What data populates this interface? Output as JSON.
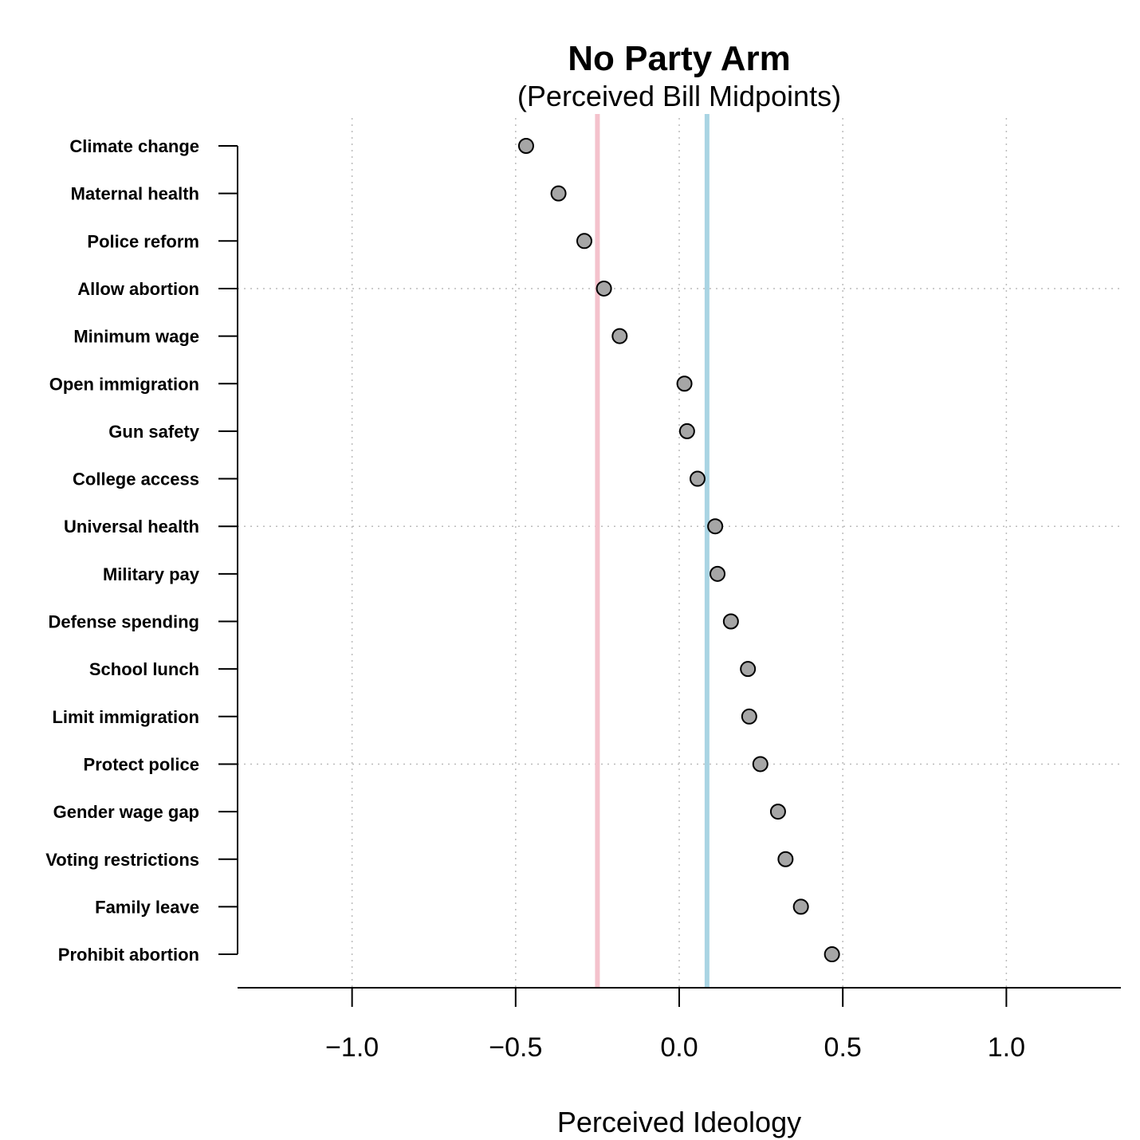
{
  "chart_data": {
    "type": "scatter",
    "title": "No Party Arm",
    "subtitle": "(Perceived Bill Midpoints)",
    "xlabel": "Perceived Ideology",
    "xlim": [
      -1.35,
      1.35
    ],
    "xticks": [
      -1.0,
      -0.5,
      0.0,
      0.5,
      1.0
    ],
    "xtick_labels": [
      "−1.0",
      "−0.5",
      "0.0",
      "0.5",
      "1.0"
    ],
    "grid": "dotted",
    "categories": [
      "Climate change",
      "Maternal health",
      "Police reform",
      "Allow abortion",
      "Minimum wage",
      "Open immigration",
      "Gun safety",
      "College access",
      "Universal health",
      "Military pay",
      "Defense spending",
      "School lunch",
      "Limit immigration",
      "Protect police",
      "Gender wage gap",
      "Voting restrictions",
      "Family leave",
      "Prohibit abortion"
    ],
    "values": [
      -0.468,
      -0.369,
      -0.29,
      -0.23,
      -0.182,
      0.016,
      0.024,
      0.056,
      0.11,
      0.117,
      0.158,
      0.21,
      0.214,
      0.248,
      0.302,
      0.325,
      0.372,
      0.467
    ],
    "reference_lines": [
      {
        "x": -0.25,
        "color": "#f4c2cc"
      },
      {
        "x": 0.085,
        "color": "#a9d4e3"
      }
    ],
    "point_fill": "#a6a6a6",
    "point_stroke": "#000000"
  }
}
